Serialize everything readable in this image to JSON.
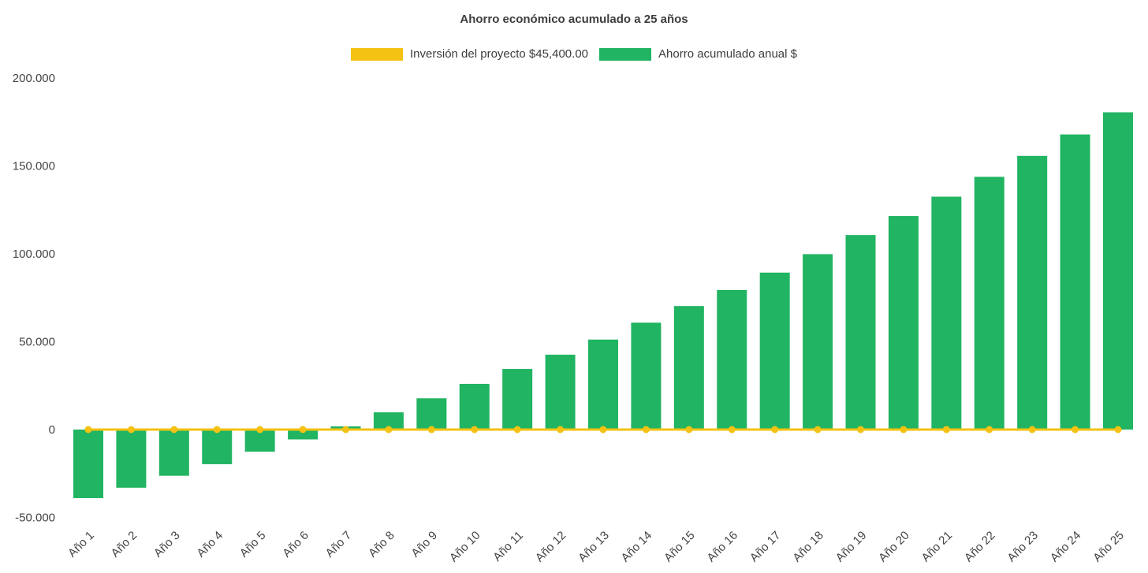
{
  "chart_data": {
    "type": "bar",
    "title": "Ahorro económico acumulado a 25 años",
    "xlabel": "",
    "ylabel": "",
    "ylim": [
      -50000,
      200000
    ],
    "grid": false,
    "legend_position": "top",
    "background": "#ffffff",
    "categories": [
      "Año 1",
      "Año 2",
      "Año 3",
      "Año 4",
      "Año 5",
      "Año 6",
      "Año 7",
      "Año 8",
      "Año 9",
      "Año 10",
      "Año 11",
      "Año 12",
      "Año 13",
      "Año 14",
      "Año 15",
      "Año 16",
      "Año 17",
      "Año 18",
      "Año 19",
      "Año 20",
      "Año 21",
      "Año 22",
      "Año 23",
      "Año 24",
      "Año 25"
    ],
    "series": [
      {
        "name": "Inversión del proyecto $45,400.00",
        "type": "line",
        "color": "#F3C212",
        "values": [
          0,
          0,
          0,
          0,
          0,
          0,
          0,
          0,
          0,
          0,
          0,
          0,
          0,
          0,
          0,
          0,
          0,
          0,
          0,
          0,
          0,
          0,
          0,
          0,
          0
        ]
      },
      {
        "name": "Ahorro acumulado anual $",
        "type": "bar",
        "color": "#21B462",
        "values": [
          -39000,
          -33100,
          -26300,
          -19700,
          -12600,
          -5600,
          1800,
          9800,
          17800,
          26000,
          34500,
          42600,
          51200,
          60800,
          70300,
          79400,
          89300,
          99800,
          110700,
          121500,
          132500,
          143800,
          155700,
          167900,
          180500
        ]
      }
    ],
    "yticks": [
      {
        "value": 200000,
        "label": "200.000"
      },
      {
        "value": 150000,
        "label": "150.000"
      },
      {
        "value": 100000,
        "label": "100.000"
      },
      {
        "value": 50000,
        "label": "50.000"
      },
      {
        "value": 0,
        "label": "0"
      },
      {
        "value": -50000,
        "label": "-50.000"
      }
    ]
  }
}
